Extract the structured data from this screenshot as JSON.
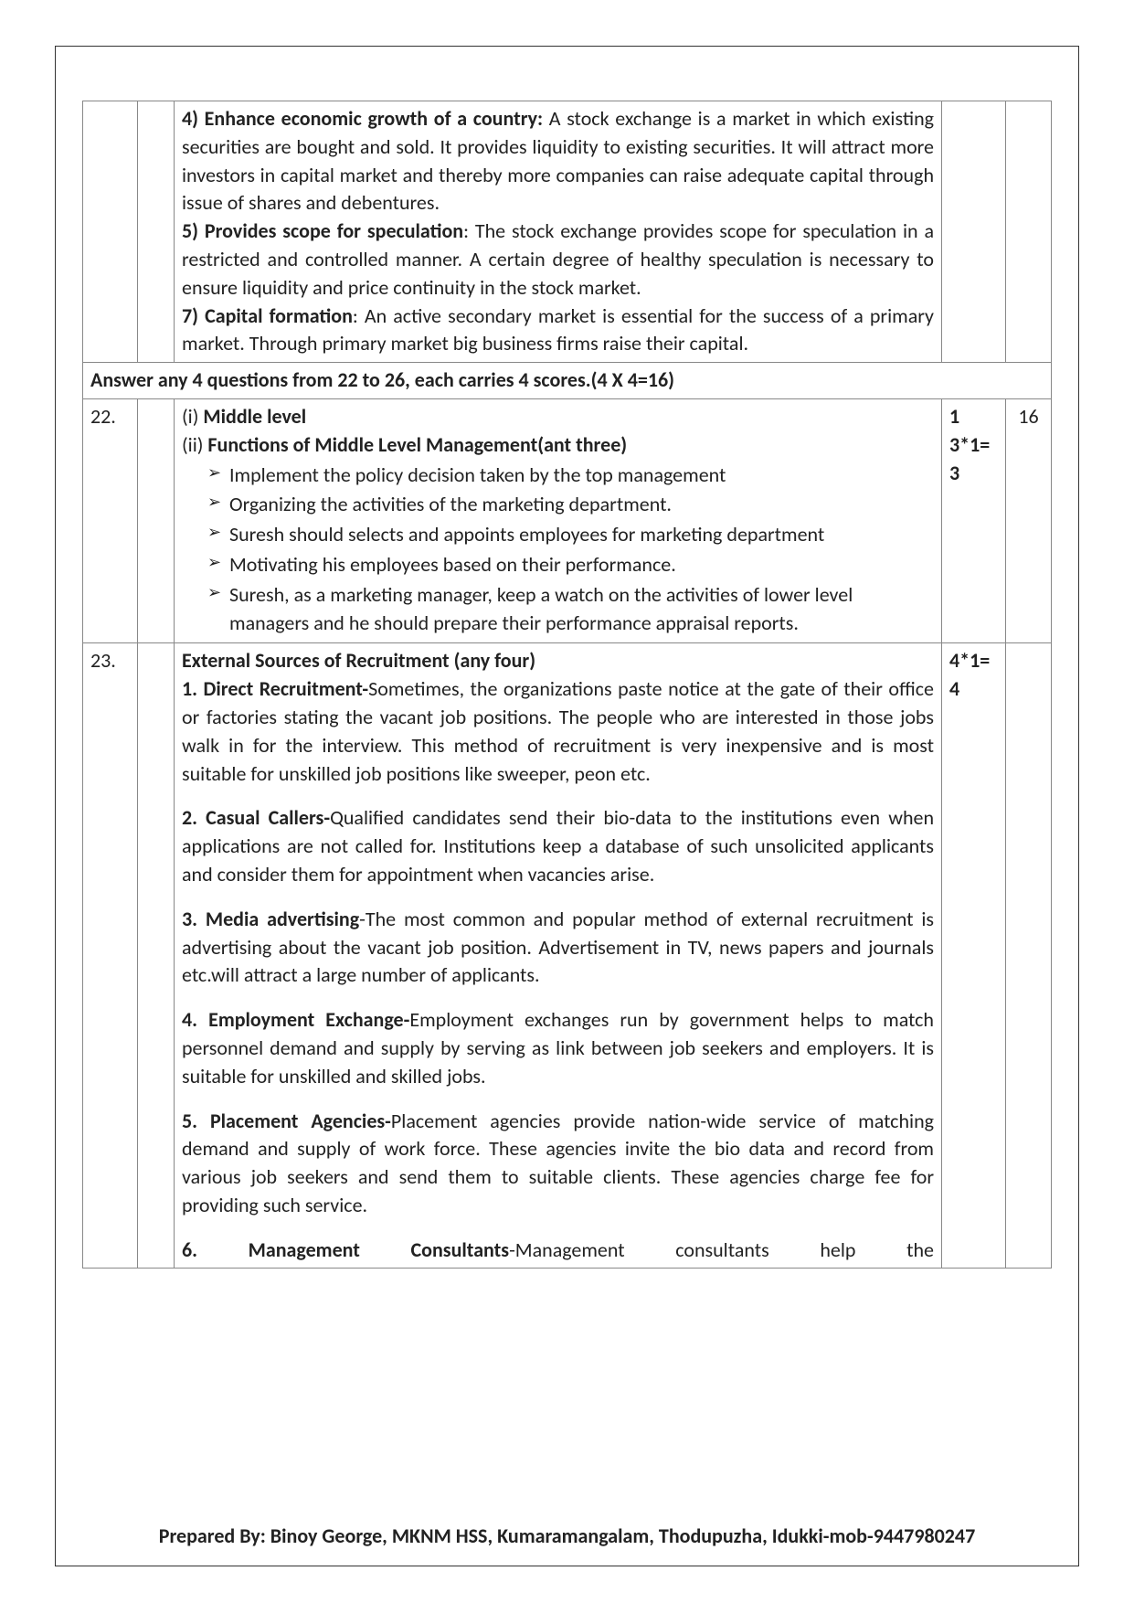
{
  "top": {
    "p4_lead": "4) Enhance economic growth of a country:",
    "p4_body": "  A stock exchange is a market in which existing securities are bought and sold. It provides liquidity to existing securities. It will attract more investors in capital market and thereby more companies can raise adequate capital through issue of shares and debentures.",
    "p5_lead": "5) Provides scope for speculation",
    "p5_body": ":  The stock exchange provides scope for speculation in a restricted and controlled manner. A certain degree of healthy speculation is necessary to ensure liquidity and price continuity in the stock market.",
    "p7_lead": "7) Capital formation",
    "p7_body": ":  An active secondary market is essential for the success of a primary market. Through primary market big business firms raise their capital."
  },
  "section_header": "Answer any 4 questions from 22 to 26, each carries 4 scores.(4  X 4=16)",
  "q22": {
    "qno": "22.",
    "i": "(i) Middle level",
    "ii": "(ii) Functions of Middle Level Management(ant three)",
    "bullets": [
      "Implement the policy decision taken by the top management",
      "Organizing the activities of the marketing department.",
      "Suresh should selects and appoints employees for marketing department",
      "Motivating his employees based on their performance.",
      "Suresh, as a marketing manager, keep a watch on the activities of lower level managers and he should prepare their performance appraisal reports."
    ],
    "marks1": "1",
    "marks2": "3*1=",
    "marks3": "3",
    "total": "16"
  },
  "q23": {
    "qno": "23.",
    "heading": "External Sources of Recruitment (any four)",
    "p1_lead": "1. Direct Recruitment-",
    "p1_body": "Sometimes, the organizations paste notice at the gate of their office or factories stating the vacant job positions. The people who are interested in those jobs walk in for the interview. This method of recruitment is very inexpensive and is most suitable for unskilled job positions like sweeper, peon etc.",
    "p2_lead": "2. Casual Callers-",
    "p2_body": "Qualified candidates send their bio-data to the institutions even when applications are not called for. Institutions keep a database of such unsolicited applicants and consider them for appointment when vacancies arise.",
    "p3_lead": "3. Media advertising",
    "p3_body": "-The most common and popular method of external recruitment is advertising about the vacant job position. Advertisement in TV, news papers and journals etc.will attract a large number of applicants.",
    "p4_lead": "4. Employment Exchange-",
    "p4_body": "Employment exchanges run by government helps to match personnel demand and supply by serving as link between job seekers and employers. It is suitable for unskilled and skilled jobs.",
    "p5_lead": "5. Placement Agencies-",
    "p5_body": "Placement agencies provide nation-wide service of matching demand and supply of work force. These agencies invite the bio data and record from various job seekers and send them to suitable clients. These agencies charge fee for providing such service.",
    "p6_w1": "6.",
    "p6_w2": "Management",
    "p6_w3": "Consultants",
    "p6_w4": "-Management",
    "p6_w5": "consultants",
    "p6_w6": "help",
    "p6_w7": "the",
    "marks1": "4*1=",
    "marks2": "4"
  },
  "footer": "Prepared By: Binoy George, MKNM HSS, Kumaramangalam, Thodupuzha, Idukki-mob-9447980247"
}
